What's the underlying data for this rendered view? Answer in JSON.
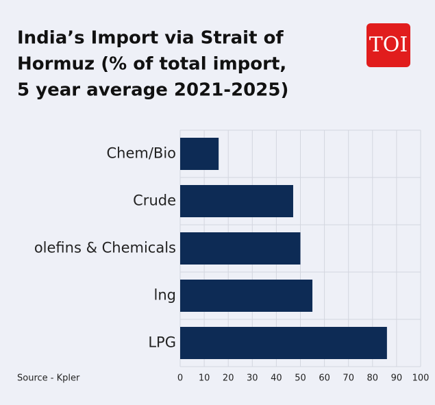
{
  "logo": "TOI",
  "chart_data": {
    "type": "bar",
    "orientation": "horizontal",
    "title": [
      "India’s Import via Strait of",
      "Hormuz (% of total import,",
      "5 year average 2021-2025)"
    ],
    "source": "Source - Kpler",
    "categories": [
      "Chem/Bio",
      "Crude",
      "olefins & Chemicals",
      "lng",
      "LPG"
    ],
    "values": [
      16,
      47,
      50,
      55,
      86
    ],
    "color": "#0d2b55",
    "xlim": [
      0,
      100
    ],
    "xticks": [
      0,
      10,
      20,
      30,
      40,
      50,
      60,
      70,
      80,
      90,
      100
    ],
    "grid": true
  }
}
